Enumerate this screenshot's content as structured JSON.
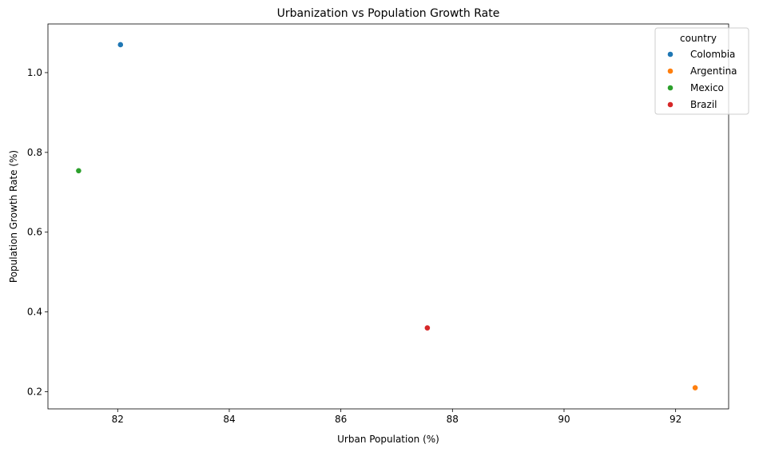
{
  "chart_data": {
    "type": "scatter",
    "title": "Urbanization vs Population Growth Rate",
    "xlabel": "Urban Population (%)",
    "ylabel": "Population Growth Rate (%)",
    "xlim": [
      80.75,
      92.95
    ],
    "ylim": [
      0.157,
      1.122
    ],
    "xticks": [
      82,
      84,
      86,
      88,
      90,
      92
    ],
    "yticks": [
      0.2,
      0.4,
      0.6,
      0.8,
      1.0
    ],
    "xtick_labels": [
      "82",
      "84",
      "86",
      "88",
      "90",
      "92"
    ],
    "ytick_labels": [
      "0.2",
      "0.4",
      "0.6",
      "0.8",
      "1.0"
    ],
    "grid": false,
    "legend": {
      "title": "country",
      "placement": "top-right"
    },
    "series": [
      {
        "name": "Colombia",
        "color": "#1f77b4",
        "points": [
          {
            "x": 82.05,
            "y": 1.07
          }
        ]
      },
      {
        "name": "Argentina",
        "color": "#ff7f0e",
        "points": [
          {
            "x": 92.35,
            "y": 0.21
          }
        ]
      },
      {
        "name": "Mexico",
        "color": "#2ca02c",
        "points": [
          {
            "x": 81.3,
            "y": 0.754
          }
        ]
      },
      {
        "name": "Brazil",
        "color": "#d62728",
        "points": [
          {
            "x": 87.55,
            "y": 0.36
          }
        ]
      }
    ]
  }
}
